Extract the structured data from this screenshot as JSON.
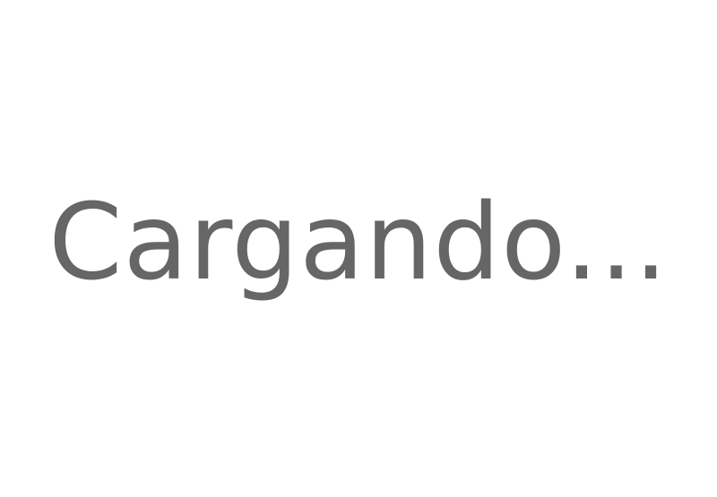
{
  "loading": {
    "text": "Cargando..."
  },
  "colors": {
    "background": "#ffffff",
    "text": "#666666"
  }
}
